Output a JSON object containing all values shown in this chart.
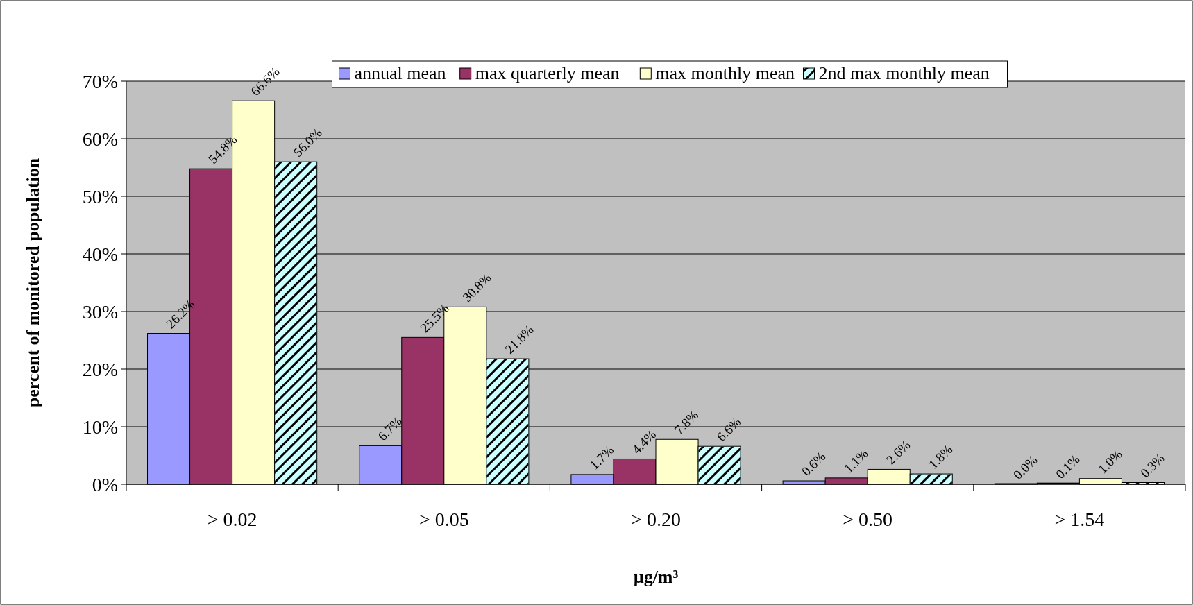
{
  "chart_data": {
    "type": "bar",
    "xlabel": "µg/m³",
    "ylabel": "percent of monitored population",
    "categories": [
      "> 0.02",
      "> 0.05",
      "> 0.20",
      "> 0.50",
      "> 1.54"
    ],
    "series": [
      {
        "name": "annual mean",
        "color": "#9999ff",
        "values": [
          26.2,
          6.7,
          1.7,
          0.6,
          0.0
        ],
        "value_labels": [
          "26.2%",
          "6.7%",
          "1.7%",
          "0.6%",
          "0.0%"
        ]
      },
      {
        "name": "max quarterly mean",
        "color": "#993366",
        "values": [
          54.8,
          25.5,
          4.4,
          1.1,
          0.1
        ],
        "value_labels": [
          "54.8%",
          "25.5%",
          "4.4%",
          "1.1%",
          "0.1%"
        ]
      },
      {
        "name": "max monthly mean",
        "color": "#ffffcc",
        "values": [
          66.6,
          30.8,
          7.8,
          2.6,
          1.0
        ],
        "value_labels": [
          "66.6%",
          "30.8%",
          "7.8%",
          "2.6%",
          "1.0%"
        ]
      },
      {
        "name": "2nd max monthly mean",
        "color": "#ccffff",
        "values": [
          56.0,
          21.8,
          6.6,
          1.8,
          0.3
        ],
        "value_labels": [
          "56.0%",
          "21.8%",
          "6.6%",
          "1.8%",
          "0.3%"
        ]
      }
    ],
    "ylim": [
      0,
      70
    ],
    "yticks": [
      {
        "value": 0,
        "label": "0%"
      },
      {
        "value": 10,
        "label": "10%"
      },
      {
        "value": 20,
        "label": "20%"
      },
      {
        "value": 30,
        "label": "30%"
      },
      {
        "value": 40,
        "label": "40%"
      },
      {
        "value": 50,
        "label": "50%"
      },
      {
        "value": 60,
        "label": "60%"
      },
      {
        "value": 70,
        "label": "70%"
      }
    ],
    "grid": "y",
    "legend": "top"
  }
}
